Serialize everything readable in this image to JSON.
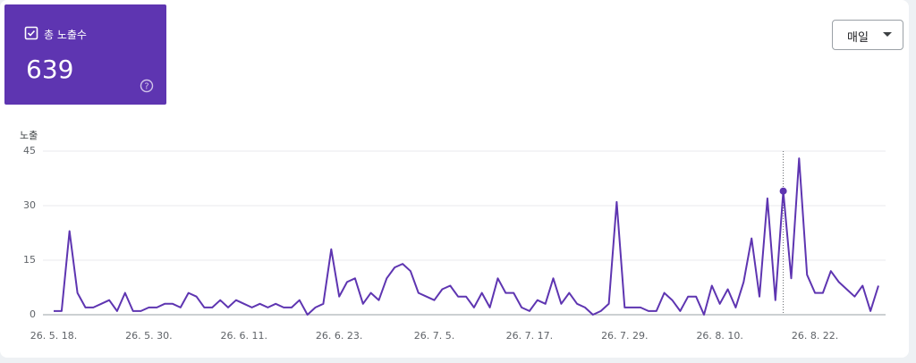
{
  "card": {
    "label": "총 노출수",
    "total": "639"
  },
  "frequency_button": "매일",
  "chart_data": {
    "type": "line",
    "y_label": "노출",
    "color": "#5e35b1",
    "categories": [
      "26. 5. 18.",
      null,
      null,
      null,
      null,
      null,
      null,
      null,
      null,
      null,
      null,
      null,
      "26. 5. 30.",
      null,
      null,
      null,
      null,
      null,
      null,
      null,
      null,
      null,
      null,
      null,
      "26. 6. 11.",
      null,
      null,
      null,
      null,
      null,
      null,
      null,
      null,
      null,
      null,
      null,
      "26. 6. 23.",
      null,
      null,
      null,
      null,
      null,
      null,
      null,
      null,
      null,
      null,
      null,
      "26. 7. 5.",
      null,
      null,
      null,
      null,
      null,
      null,
      null,
      null,
      null,
      null,
      null,
      "26. 7. 17.",
      null,
      null,
      null,
      null,
      null,
      null,
      null,
      null,
      null,
      null,
      null,
      "26. 7. 29.",
      null,
      null,
      null,
      null,
      null,
      null,
      null,
      null,
      null,
      null,
      null,
      "26. 8. 10.",
      null,
      null,
      null,
      null,
      null,
      null,
      null,
      null,
      null,
      null,
      null,
      "26. 8. 22.",
      null,
      null,
      null,
      null,
      null,
      null,
      null,
      null
    ],
    "values": [
      1,
      1,
      23,
      6,
      2,
      2,
      3,
      4,
      1,
      6,
      1,
      1,
      2,
      2,
      3,
      3,
      2,
      6,
      5,
      2,
      2,
      4,
      2,
      4,
      3,
      2,
      3,
      2,
      3,
      2,
      2,
      4,
      0,
      2,
      3,
      18,
      5,
      9,
      10,
      3,
      6,
      4,
      10,
      13,
      14,
      12,
      6,
      5,
      4,
      7,
      8,
      5,
      5,
      2,
      6,
      2,
      10,
      6,
      6,
      2,
      1,
      4,
      3,
      10,
      3,
      6,
      3,
      2,
      0,
      1,
      3,
      31,
      2,
      2,
      2,
      1,
      1,
      6,
      4,
      1,
      5,
      5,
      0,
      8,
      3,
      7,
      2,
      9,
      21,
      5,
      32,
      4,
      34,
      10,
      43,
      11,
      6,
      6,
      12,
      9,
      7,
      5,
      8,
      1,
      8
    ],
    "ylim": [
      0,
      45
    ],
    "yticks": [
      0,
      15,
      30,
      45
    ],
    "grid": true,
    "highlighted_point": 92
  }
}
